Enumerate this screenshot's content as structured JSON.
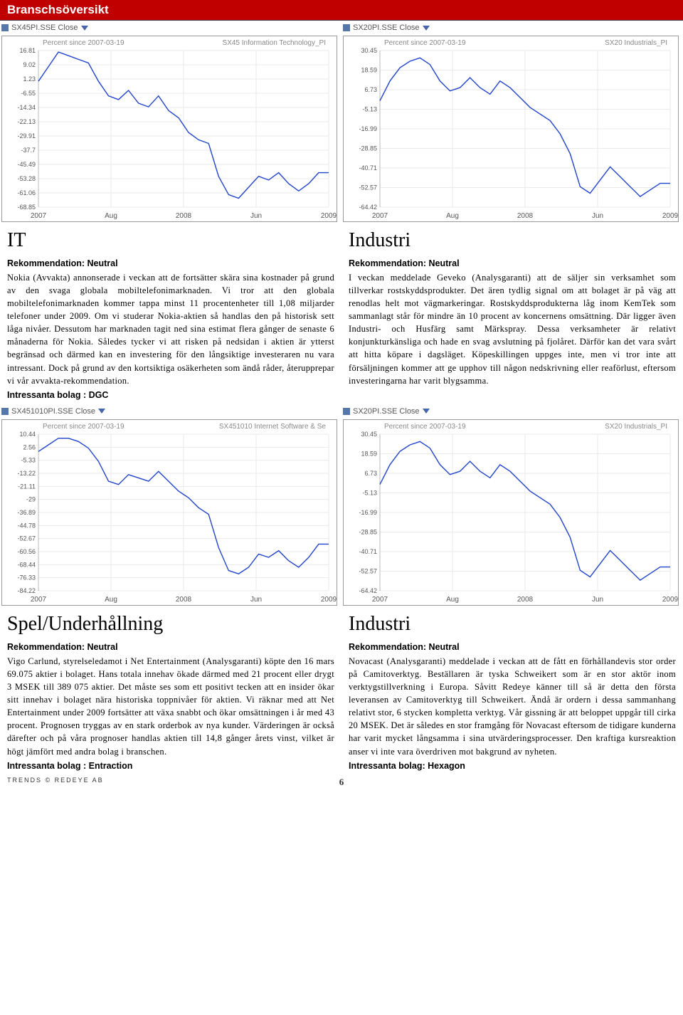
{
  "page_title": "Branschsöversikt",
  "chart1": {
    "dropdown": "SX45PI.SSE Close",
    "type": "line",
    "legend_left": "Percent since 2007-03-19",
    "legend_right": "SX45 Information Technology_PI",
    "y_ticks": [
      16.81,
      9.02,
      1.23,
      -6.55,
      -14.34,
      -22.13,
      -29.91,
      -37.7,
      -45.49,
      -53.28,
      -61.06,
      -68.85
    ],
    "x_labels": [
      "2007",
      "Aug",
      "2008",
      "Jun",
      "2009"
    ],
    "line_color": "#2244cc",
    "legend_color": "#888888",
    "values": [
      0,
      8,
      16,
      14,
      12,
      10,
      0,
      -8,
      -10,
      -5,
      -12,
      -14,
      -8,
      -16,
      -20,
      -28,
      -32,
      -34,
      -52,
      -62,
      -64,
      -58,
      -52,
      -54,
      -50,
      -56,
      -60,
      -56,
      -50,
      -50
    ]
  },
  "chart2": {
    "dropdown": "SX20PI.SSE Close",
    "type": "line",
    "legend_left": "Percent since 2007-03-19",
    "legend_right": "SX20 Industrials_PI",
    "y_ticks": [
      30.45,
      18.59,
      6.73,
      -5.13,
      -16.99,
      -28.85,
      -40.71,
      -52.57,
      -64.42
    ],
    "x_labels": [
      "2007",
      "Aug",
      "2008",
      "Jun",
      "2009"
    ],
    "line_color": "#2244cc",
    "legend_color": "#888888",
    "values": [
      0,
      12,
      20,
      24,
      26,
      22,
      12,
      6,
      8,
      14,
      8,
      4,
      12,
      8,
      2,
      -4,
      -8,
      -12,
      -20,
      -32,
      -52,
      -56,
      -48,
      -40,
      -46,
      -52,
      -58,
      -54,
      -50,
      -50
    ]
  },
  "chart3": {
    "dropdown": "SX451010PI.SSE Close",
    "type": "line",
    "legend_left": "Percent since 2007-03-19",
    "legend_right": "SX451010 Internet Software & Se",
    "y_ticks": [
      10.44,
      2.56,
      -5.33,
      -13.22,
      -21.11,
      -29,
      -36.89,
      -44.78,
      -52.67,
      -60.56,
      -68.44,
      -76.33,
      -84.22
    ],
    "x_labels": [
      "2007",
      "Aug",
      "2008",
      "Jun",
      "2009"
    ],
    "line_color": "#2244cc",
    "legend_color": "#888888",
    "values": [
      0,
      4,
      8,
      8,
      6,
      2,
      -6,
      -18,
      -20,
      -14,
      -16,
      -18,
      -12,
      -18,
      -24,
      -28,
      -34,
      -38,
      -58,
      -72,
      -74,
      -70,
      -62,
      -64,
      -60,
      -66,
      -70,
      -64,
      -56,
      -56
    ]
  },
  "chart4": {
    "dropdown": "SX20PI.SSE Close",
    "type": "line",
    "legend_left": "Percent since 2007-03-19",
    "legend_right": "SX20 Industrials_PI",
    "y_ticks": [
      30.45,
      18.59,
      6.73,
      -5.13,
      -16.99,
      -28.85,
      -40.71,
      -52.57,
      -64.42
    ],
    "x_labels": [
      "2007",
      "Aug",
      "2008",
      "Jun",
      "2009"
    ],
    "line_color": "#2244cc",
    "legend_color": "#888888",
    "values": [
      0,
      12,
      20,
      24,
      26,
      22,
      12,
      6,
      8,
      14,
      8,
      4,
      12,
      8,
      2,
      -4,
      -8,
      -12,
      -20,
      -32,
      -52,
      -56,
      -48,
      -40,
      -46,
      -52,
      -58,
      -54,
      -50,
      -50
    ]
  },
  "sec1": {
    "title": "IT",
    "rec": "Rekommendation: Neutral",
    "body": "Nokia (Avvakta) annonserade i veckan att de fortsätter skära sina kostnader på grund av den svaga globala mobiltelefonimarknaden. Vi tror att den globala mobiltelefonimarknaden kommer tappa minst 11 procentenheter till 1,08 miljarder telefoner under 2009. Om vi studerar Nokia-aktien så handlas den på historisk sett låga nivåer. Dessutom har marknaden tagit ned sina estimat flera gånger de senaste 6 månaderna för Nokia. Således tycker vi att risken på nedsidan i aktien är ytterst begränsad och därmed kan en investering för den långsiktige investeraren nu vara intressant. Dock på grund av den kortsiktiga osäkerheten som ändå råder, återupprepar vi vår avvakta-rekommendation.",
    "intressanta": "Intressanta bolag : DGC"
  },
  "sec2": {
    "title": "Industri",
    "rec": "Rekommendation: Neutral",
    "body": "I veckan meddelade Geveko (Analysgaranti) att de säljer sin verksamhet som tillverkar rostskyddsprodukter. Det ären tydlig signal om att bolaget är på väg att renodlas helt mot vägmarkeringar. Rostskyddsprodukterna låg inom KemTek som sammanlagt står för mindre än 10 procent av koncernens omsättning. Där ligger även Industri- och Husfärg samt Märkspray. Dessa verksamheter är relativt konjunkturkänsliga och hade en svag avslutning på fjolåret. Därför kan det vara svårt att hitta köpare i dagsläget. Köpeskillingen uppges inte, men vi tror inte att försäljningen kommer att ge upphov till någon nedskrivning eller reaförlust, eftersom investeringarna har varit blygsamma.",
    "intressanta": ""
  },
  "sec3": {
    "title": "Spel/Underhållning",
    "rec": "Rekommendation: Neutral",
    "body": "Vigo Carlund, styrelseledamot i Net Entertainment (Analysgaranti) köpte den 16 mars 69.075 aktier i bolaget. Hans totala innehav ökade därmed med 21 procent eller drygt 3 MSEK till 389 075 aktier. Det måste ses som ett positivt tecken att en insider ökar sitt innehav i bolaget nära historiska toppnivåer för aktien. Vi räknar med att Net Entertainment under 2009 fortsätter att växa snabbt och ökar omsättningen i år med 43 procent. Prognosen tryggas av en stark orderbok av nya kunder. Värderingen är också därefter och på våra prognoser handlas aktien till 14,8 gånger årets vinst, vilket är högt jämfört med andra bolag i branschen.",
    "intressanta": "Intressanta bolag : Entraction"
  },
  "sec4": {
    "title": "Industri",
    "rec": "Rekommendation: Neutral",
    "body": "Novacast (Analysgaranti) meddelade i veckan att de fått en förhållandevis stor order på Camitoverktyg. Beställaren är tyska Schweikert som är en stor aktör inom verktygstillverkning i Europa. Såvitt Redeye känner till så är detta den första leveransen av Camitoverktyg till Schweikert. Ändå är ordern i dessa sammanhang relativt stor, 6 stycken kompletta verktyg. Vår gissning är att beloppet uppgår till cirka 20 MSEK. Det är således en stor framgång för Novacast eftersom de tidigare kunderna har varit mycket långsamma i sina utvärderingsprocesser. Den kraftiga kursreaktion anser vi inte vara överdriven mot bakgrund av nyheten.",
    "intressanta": "Intressanta bolag: Hexagon"
  },
  "footer": {
    "left": "TRENDS  ©  REDEYE AB",
    "page": "6"
  },
  "colors": {
    "header_bg": "#c00000",
    "border": "#999999",
    "chart_grid": "#dadada",
    "axis_text": "#555555"
  }
}
